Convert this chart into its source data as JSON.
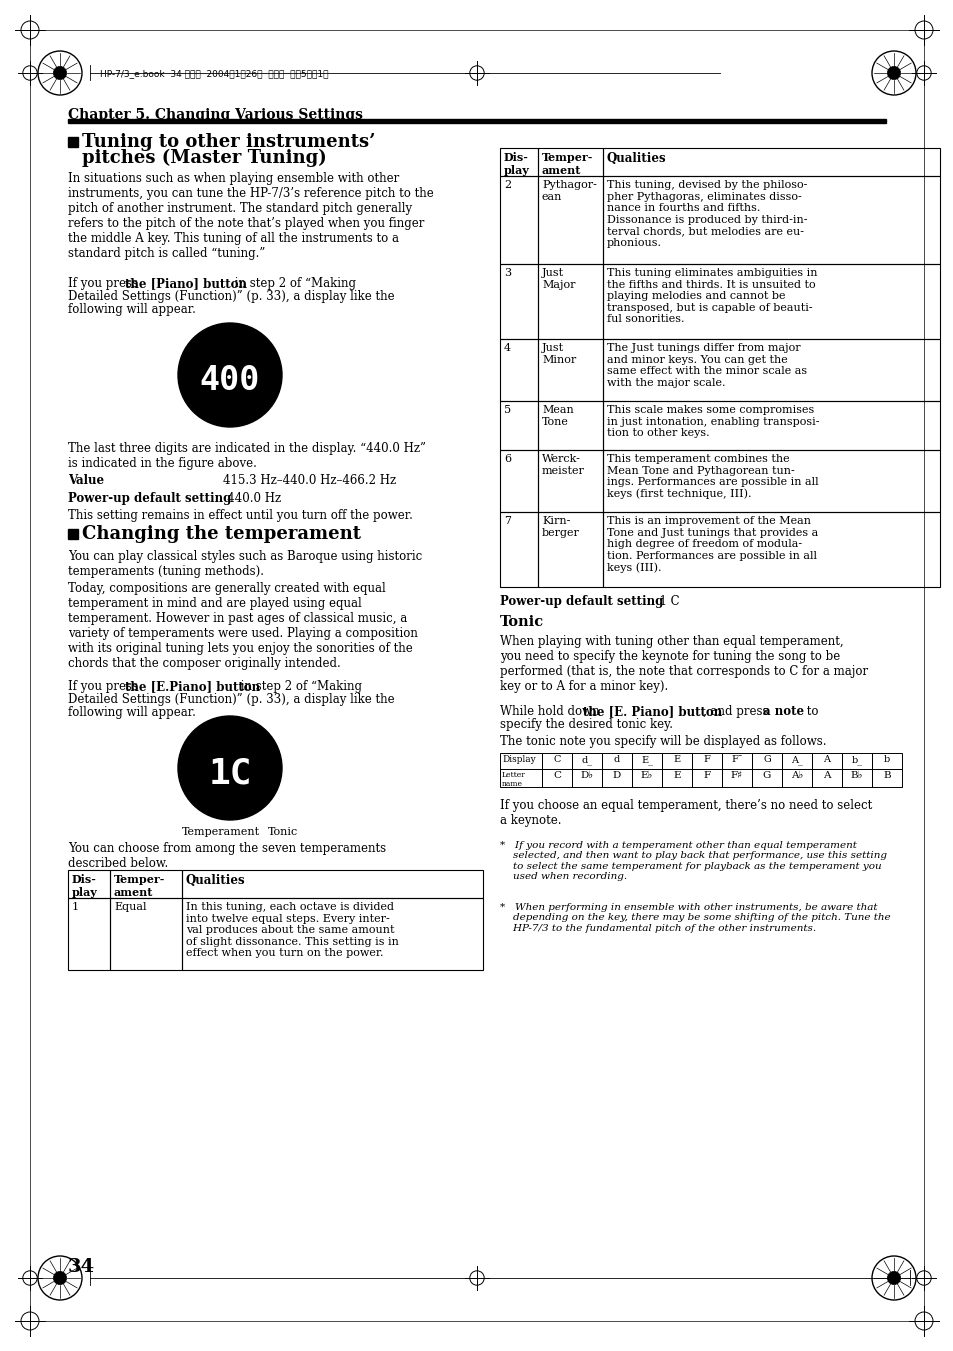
{
  "page_bg": "#ffffff",
  "page_number": "34",
  "chapter_title": "Chapter 5. Changing Various Settings",
  "header_text": "HP-7/3_e.book  34 ページ  2004年1月26日  月曜日  午待5時で1分",
  "value_range": "415.3 Hz–440.0 Hz–466.2 Hz",
  "power_default_1_val": "440.0 Hz",
  "power_default_2_val": "1 C",
  "display_vals": [
    "C",
    "d_",
    "d",
    "E_",
    "E",
    "F",
    "F¯",
    "G",
    "A_",
    "A",
    "b_",
    "b"
  ],
  "letter_vals": [
    "C",
    "D♭",
    "D",
    "E♭",
    "E",
    "F",
    "F♯",
    "G",
    "A♭",
    "A",
    "B♭",
    "B"
  ],
  "right_rows": [
    [
      "2",
      "Pythagor-\nean",
      "This tuning, devised by the philoso-\npher Pythagoras, eliminates disso-\nnance in fourths and fifths.\nDissonance is produced by third-in-\nterval chords, but melodies are eu-\nphonious.",
      88
    ],
    [
      "3",
      "Just\nMajor",
      "This tuning eliminates ambiguities in\nthe fifths and thirds. It is unsuited to\nplaying melodies and cannot be\ntransposed, but is capable of beauti-\nful sonorities.",
      75
    ],
    [
      "4",
      "Just\nMinor",
      "The Just tunings differ from major\nand minor keys. You can get the\nsame effect with the minor scale as\nwith the major scale.",
      62
    ],
    [
      "5",
      "Mean\nTone",
      "This scale makes some compromises\nin just intonation, enabling transposi-\ntion to other keys.",
      49
    ],
    [
      "6",
      "Werck-\nmeister",
      "This temperament combines the\nMean Tone and Pythagorean tun-\nings. Performances are possible in all\nkeys (first technique, III).",
      62
    ],
    [
      "7",
      "Kirn-\nberger",
      "This is an improvement of the Mean\nTone and Just tunings that provides a\nhigh degree of freedom of modula-\ntion. Performances are possible in all\nkeys (III).",
      75
    ]
  ]
}
